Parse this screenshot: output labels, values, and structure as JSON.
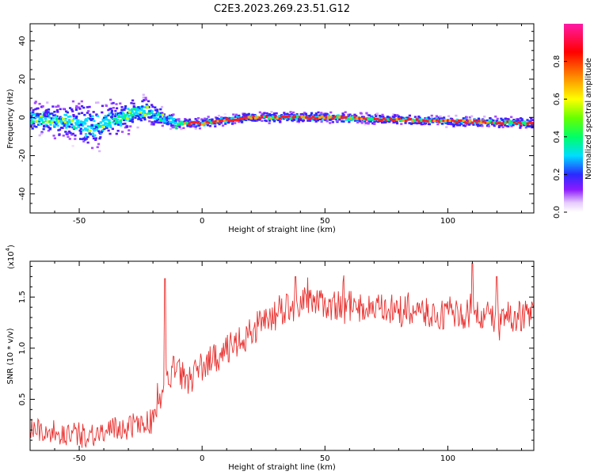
{
  "title": "C2E3.2023.269.23.51.G12",
  "chart_data": [
    {
      "type": "heatmap",
      "name": "spectrogram",
      "xlabel": "Height of straight line (km)",
      "ylabel": "Frequency (Hz)",
      "xlim": [
        -70,
        135
      ],
      "ylim": [
        -50,
        49
      ],
      "xticks": [
        -50,
        0,
        50,
        100
      ],
      "yticks": [
        -40,
        -20,
        0,
        20,
        40
      ],
      "signal_band": {
        "description": "frequency track vs height",
        "x": [
          -70,
          -60,
          -50,
          -45,
          -40,
          -35,
          -30,
          -25,
          -22,
          -18,
          -15,
          -10,
          0,
          20,
          50,
          100,
          135
        ],
        "center_hz": [
          0,
          -2,
          -3,
          -5,
          -4,
          -1,
          1,
          3,
          3,
          1,
          -1,
          -3,
          -3,
          0,
          0,
          -2,
          -3
        ],
        "halfwidth_hz": [
          5,
          6,
          8,
          9,
          8,
          7,
          6,
          6,
          5,
          4,
          3,
          2,
          2,
          2,
          2,
          2,
          2
        ]
      },
      "colorbar": {
        "label": "Normalized spectral amplitude",
        "range": [
          0.0,
          1.0
        ],
        "ticks": [
          0.0,
          0.2,
          0.4,
          0.6,
          0.8
        ]
      }
    },
    {
      "type": "line",
      "name": "snr",
      "xlabel": "Height of straight line (km)",
      "ylabel": "SNR (10 * v/v)",
      "scale_label": "(x10",
      "scale_exp": "4",
      "scale_close": ")",
      "xlim": [
        -70,
        135
      ],
      "ylim": [
        0,
        18500
      ],
      "xticks": [
        -50,
        0,
        50,
        100
      ],
      "yticks": [
        0.5,
        1.0,
        1.5
      ],
      "ytick_labels": [
        "0.5",
        "1.0",
        "1.5"
      ],
      "color": "#e8312f",
      "trend_x": [
        -70,
        -60,
        -50,
        -40,
        -30,
        -25,
        -20,
        -17,
        -15,
        -12,
        -10,
        -5,
        0,
        5,
        10,
        15,
        20,
        25,
        30,
        35,
        40,
        50,
        60,
        70,
        80,
        90,
        100,
        110,
        120,
        130,
        135
      ],
      "trend_y": [
        2200,
        1800,
        1500,
        1700,
        2400,
        2600,
        2900,
        4500,
        6500,
        8000,
        7500,
        7000,
        8200,
        9000,
        9800,
        10500,
        11500,
        12500,
        13300,
        14000,
        14300,
        14300,
        14100,
        13800,
        13600,
        13400,
        13300,
        13200,
        13000,
        13200,
        13400
      ],
      "noise_amp": 1400,
      "peaks": [
        [
          -15,
          16800
        ],
        [
          110,
          18300
        ],
        [
          38,
          17000
        ],
        [
          120,
          17000
        ]
      ]
    }
  ]
}
